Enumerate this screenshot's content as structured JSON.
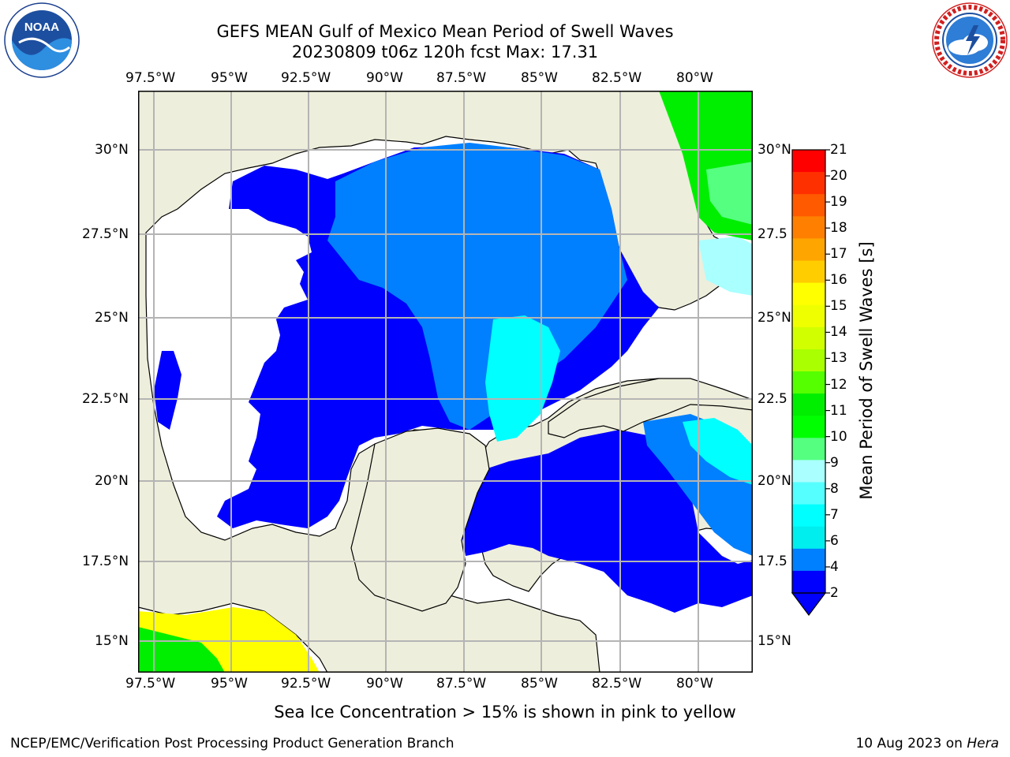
{
  "header": {
    "title_line1": "GEFS MEAN Gulf of Mexico Mean Period of Swell Waves",
    "title_line2": "20230809 t06z 120h fcst   Max: 17.31"
  },
  "logos": {
    "noaa": "NOAA",
    "noaa_ring_text": "NATIONAL OCEANIC AND ATMOSPHERIC ADMINISTRATION · U.S. DEPARTMENT OF COMMERCE",
    "nws_ring_text": "NATIONAL WEATHER SERVICE"
  },
  "axes": {
    "lon_labels": [
      "97.5°W",
      "95°W",
      "92.5°W",
      "90°W",
      "87.5°W",
      "85°W",
      "82.5°W",
      "80°W"
    ],
    "lat_labels_left": [
      "30°N",
      "27.5°N",
      "25°N",
      "22.5°N",
      "20°N",
      "17.5°N",
      "15°N"
    ],
    "lat_labels_right": [
      "30°N",
      "27.5",
      "25°N",
      "22.5",
      "20°N",
      "17.5",
      "15°N"
    ]
  },
  "colorbar": {
    "label": "Mean Period of Swell Waves [s]",
    "ticks": [
      "21",
      "20",
      "19",
      "18",
      "17",
      "16",
      "15",
      "14",
      "13",
      "12",
      "11",
      "10",
      "9",
      "8",
      "7",
      "6",
      "4",
      "2"
    ],
    "colors": [
      "#ff0000",
      "#ff3000",
      "#ff5a00",
      "#ff8000",
      "#ffa500",
      "#ffcd00",
      "#ffff00",
      "#f0ff00",
      "#d2ff00",
      "#aaff00",
      "#55ff00",
      "#00ee00",
      "#00ff00",
      "#55ff80",
      "#aaffff",
      "#55ffff",
      "#00ffff",
      "#00eeee",
      "#0080ff",
      "#0000ff"
    ]
  },
  "map": {
    "land_color": "#eeeedc",
    "grid_color": "#b4b4b4"
  },
  "footer": {
    "note": "Sea Ice Concentration > 15% is shown in pink to yellow",
    "left": "NCEP/EMC/Verification Post Processing Product Generation Branch",
    "right_date": "10 Aug 2023 on ",
    "right_machine": "Hera"
  }
}
